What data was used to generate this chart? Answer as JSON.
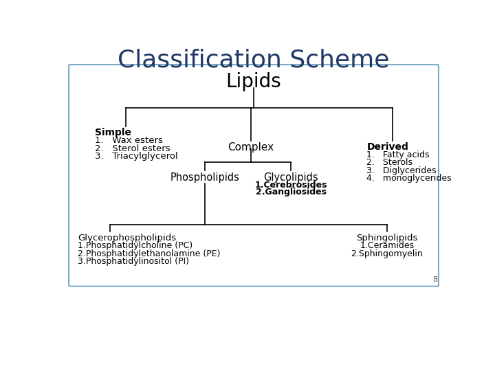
{
  "title": "Classification Scheme",
  "title_color": "#1f3864",
  "title_fontsize": 26,
  "background_color": "#ffffff",
  "box_bg": "#ffffff",
  "box_border": "#7aaac8",
  "page_number": "8",
  "lipids_label": "Lipids",
  "lipids_fontsize": 20,
  "simple_label": "Simple",
  "simple_items": [
    "1.   Wax esters",
    "2.   Sterol esters",
    "3.   Triacylglycerol"
  ],
  "complex_label": "Complex",
  "derived_label": "Derived",
  "derived_items": [
    "1.   Fatty acids",
    "2.   Sterols",
    "3.   Diglycerides",
    "4.   monoglycerides"
  ],
  "phospholipids_label": "Phospholipids",
  "glycolipids_label": "Glycolipids",
  "glycolipids_items": [
    "1.Cerebrosides",
    "2.Gangliosides"
  ],
  "glycerophospholipids_label": "Glycerophospholipids",
  "glycerophospholipids_items": [
    "1.Phosphatidylcholine (PC)",
    "2.Phosphatidylethanolamine (PE)",
    "3.Phosphatidylinositol (PI)"
  ],
  "sphingolipids_label": "Sphingolipids",
  "sphingolipids_items": [
    "1.Ceramides",
    "2.Sphingomyelin"
  ],
  "line_color": "#000000",
  "text_color": "#000000",
  "label_fontsize": 10,
  "item_fontsize": 9.5,
  "bold_fontsize": 10
}
